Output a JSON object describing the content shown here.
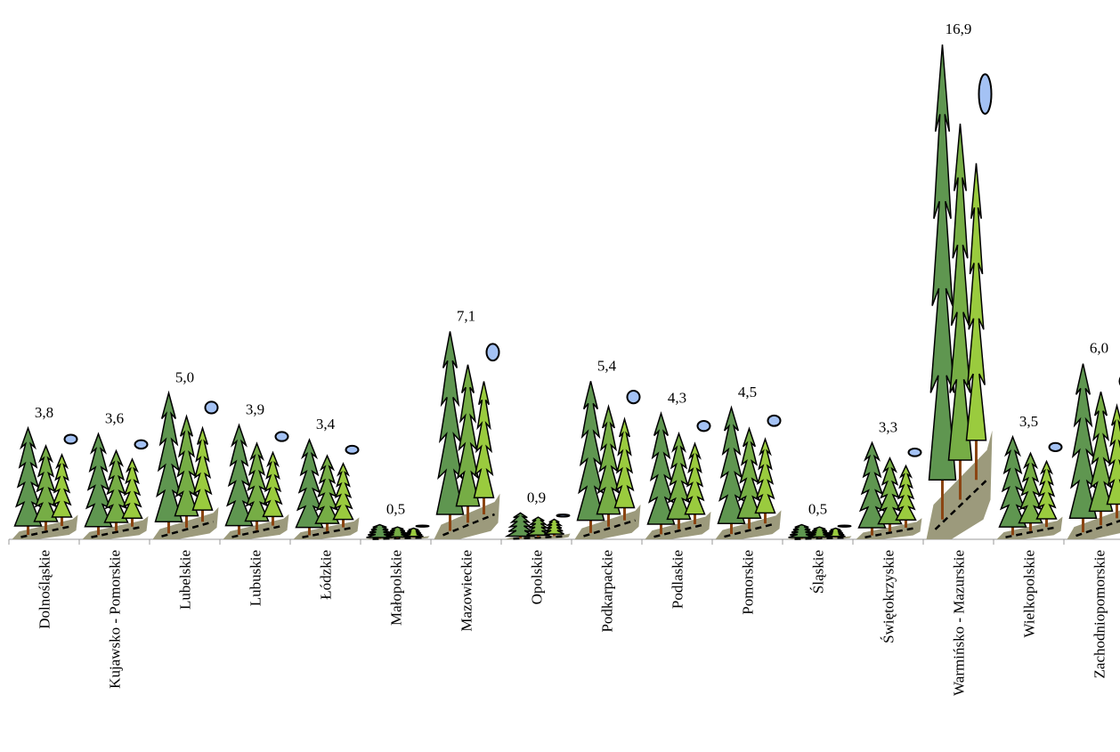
{
  "chart_data": {
    "type": "pictograph",
    "categories": [
      "Dolnośląskie",
      "Kujawsko - Pomorskie",
      "Lubelskie",
      "Lubuskie",
      "Łódzkie",
      "Małopolskie",
      "Mazowieckie",
      "Opolskie",
      "Podkarpackie",
      "Podlaskie",
      "Pomorskie",
      "Śląskie",
      "Świętokrzyskie",
      "Warmińsko - Mazurskie",
      "Wielkopolskie",
      "Zachodniopomorskie"
    ],
    "values": [
      3.8,
      3.6,
      5.0,
      3.9,
      3.4,
      0.5,
      7.1,
      0.9,
      5.4,
      4.3,
      4.5,
      0.5,
      3.3,
      16.9,
      3.5,
      6.0
    ],
    "value_labels": [
      "3,8",
      "3,6",
      "5,0",
      "3,9",
      "3,4",
      "0,5",
      "7,1",
      "0,9",
      "5,4",
      "4,3",
      "4,5",
      "0,5",
      "3,3",
      "16,9",
      "3,5",
      "6,0"
    ]
  }
}
